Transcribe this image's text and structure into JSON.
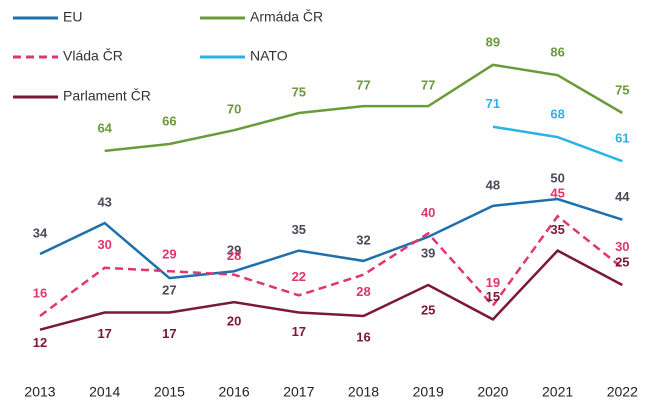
{
  "chart_data": {
    "type": "line",
    "x": [
      "2013",
      "2014",
      "2015",
      "2016",
      "2017",
      "2018",
      "2019",
      "2020",
      "2021",
      "2022"
    ],
    "series": [
      {
        "name": "EU",
        "color": "#1f6fad",
        "label_color": "#4a4a5a",
        "values": [
          34,
          43,
          27,
          29,
          35,
          32,
          39,
          48,
          50,
          44
        ]
      },
      {
        "name": "Armáda ČR",
        "color": "#6a9a3a",
        "label_color": "#6a9a3a",
        "values": [
          null,
          64,
          66,
          70,
          75,
          77,
          77,
          89,
          86,
          75
        ]
      },
      {
        "name": "Vláda ČR",
        "color": "#e0356f",
        "label_color": "#e0356f",
        "dashed": true,
        "values": [
          16,
          30,
          29,
          28,
          22,
          28,
          40,
          19,
          45,
          30
        ]
      },
      {
        "name": "NATO",
        "color": "#29b3e6",
        "label_color": "#29b3e6",
        "values": [
          null,
          null,
          null,
          null,
          null,
          null,
          null,
          71,
          68,
          61
        ]
      },
      {
        "name": "Parlament ČR",
        "color": "#7a1836",
        "label_color": "#7a1836",
        "values": [
          12,
          17,
          17,
          20,
          17,
          16,
          25,
          15,
          35,
          25
        ]
      }
    ]
  }
}
